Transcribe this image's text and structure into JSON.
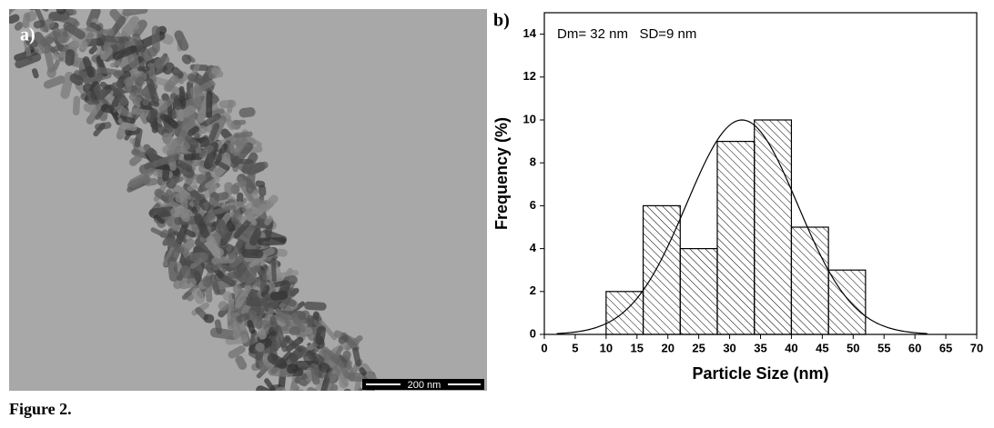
{
  "figure": {
    "caption": "Figure 2.",
    "panel_a": {
      "label": "a)",
      "scale_bar": "200 nm"
    }
  },
  "chart_data": {
    "type": "histogram",
    "panel_label": "b)",
    "annotation": "Dm= 32 nm   SD=9 nm",
    "x_label": "Particle Size (nm)",
    "y_label": "Frequency (%)",
    "bins": [
      10,
      16,
      22,
      28,
      34,
      40,
      46,
      52
    ],
    "values": [
      2,
      6,
      4,
      9,
      10,
      5,
      3
    ],
    "color": "#000000",
    "xlim": [
      0,
      70
    ],
    "xticks": [
      0,
      5,
      10,
      15,
      20,
      25,
      30,
      35,
      40,
      45,
      50,
      55,
      60,
      65,
      70
    ],
    "ylim": [
      0,
      15
    ],
    "yticks": [
      0,
      2,
      4,
      6,
      8,
      10,
      12,
      14
    ],
    "fit": {
      "mean": 32,
      "sd": 9,
      "peak": 10,
      "range": [
        2,
        62
      ]
    }
  }
}
